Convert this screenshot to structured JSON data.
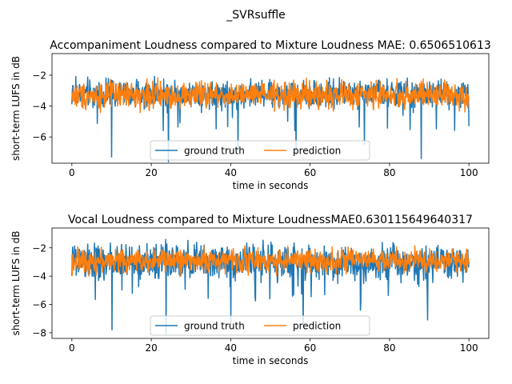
{
  "figure_title": "_SVRsuffle",
  "colors": {
    "ground_truth": "#1f77b4",
    "prediction": "#ff7f0e"
  },
  "chart_data": [
    {
      "type": "line",
      "title": "Accompaniment Loudness compared to Mixture Loudness MAE: 0.6506510613",
      "xlabel": "time in seconds",
      "ylabel": "short-term LUFS in dB",
      "xlim": [
        -5,
        105
      ],
      "ylim": [
        -7.7,
        -0.6
      ],
      "xticks": [
        0,
        20,
        40,
        60,
        80,
        100
      ],
      "yticks": [
        -6,
        -4,
        -2
      ],
      "grid": false,
      "legend": {
        "placement": "lower center",
        "columns": 2
      },
      "series": [
        {
          "name": "ground truth",
          "color": "#1f77b4",
          "n_points": 1000,
          "x_range": [
            0,
            100
          ],
          "y_typical_range": [
            -4.4,
            -1.9
          ],
          "y_spikes_down": [
            -7.3,
            -7.6,
            -6.9,
            -7.1,
            -6.5,
            -7.4
          ],
          "mean": -3.2
        },
        {
          "name": "prediction",
          "color": "#ff7f0e",
          "n_points": 1000,
          "x_range": [
            0,
            100
          ],
          "y_typical_range": [
            -4.6,
            -2.0
          ],
          "mean": -3.3
        }
      ]
    },
    {
      "type": "line",
      "title": "Vocal Loudness compared to Mixture LoudnessMAE0.630115649640317",
      "xlabel": "time in seconds",
      "ylabel": "short-term LUFS in dB",
      "xlim": [
        -5,
        105
      ],
      "ylim": [
        -8.4,
        -0.6
      ],
      "xticks": [
        0,
        20,
        40,
        60,
        80,
        100
      ],
      "yticks": [
        -8,
        -6,
        -4,
        -2
      ],
      "grid": false,
      "legend": {
        "placement": "lower center",
        "columns": 2
      },
      "series": [
        {
          "name": "ground truth",
          "color": "#1f77b4",
          "n_points": 1000,
          "x_range": [
            0,
            100
          ],
          "y_typical_range": [
            -4.8,
            -1.1
          ],
          "y_spikes_down": [
            -7.8,
            -8.1,
            -7.4,
            -7.6,
            -6.4,
            -7.1
          ],
          "mean": -3.0
        },
        {
          "name": "prediction",
          "color": "#ff7f0e",
          "n_points": 1000,
          "x_range": [
            0,
            100
          ],
          "y_typical_range": [
            -4.0,
            -1.6
          ],
          "mean": -2.9
        }
      ]
    }
  ]
}
